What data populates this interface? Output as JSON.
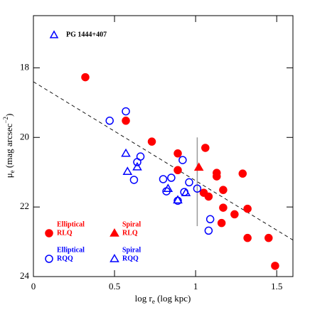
{
  "chart_data": {
    "type": "scatter",
    "xlabel": {
      "text": "log r",
      "sub": "e",
      "rest": " (log kpc)"
    },
    "ylabel": {
      "symbol": "μ",
      "sub": "e",
      "text": " (mag arcsec",
      "sup": "−2",
      "close": ")"
    },
    "xlim": [
      0,
      1.6
    ],
    "ylim": [
      24,
      16.5
    ],
    "xticks": [
      0,
      0.5,
      1,
      1.5
    ],
    "yticks": [
      18,
      20,
      22,
      24
    ],
    "annotation": {
      "text": "PG 1444+407",
      "color": "#0000ff"
    },
    "fit_line": {
      "x": [
        0,
        1.6
      ],
      "y": [
        18.4,
        22.95
      ]
    },
    "error_bar": {
      "x": 1.01,
      "y": [
        20.0,
        22.55
      ],
      "color": "#999999"
    },
    "series": [
      {
        "name": "Elliptical",
        "group": "RLQ",
        "color": "#ff0000",
        "marker": "circle",
        "filled": true,
        "x": [
          0.32,
          0.57,
          0.73,
          0.89,
          0.89,
          1.06,
          1.05,
          1.08,
          1.13,
          1.13,
          1.17,
          1.17,
          1.16,
          1.24,
          1.29,
          1.32,
          1.32,
          1.45,
          1.49
        ],
        "values": [
          18.27,
          19.52,
          20.12,
          20.46,
          20.94,
          20.3,
          21.59,
          21.7,
          21.12,
          21.02,
          21.51,
          22.02,
          22.46,
          22.21,
          21.04,
          22.05,
          22.89,
          22.89,
          23.69
        ]
      },
      {
        "name": "Spiral",
        "group": "RLQ",
        "color": "#ff0000",
        "marker": "triangle",
        "filled": true,
        "x": [
          1.02
        ],
        "values": [
          20.86
        ]
      },
      {
        "name": "Elliptical",
        "group": "RQQ",
        "color": "#0000ff",
        "marker": "circle",
        "filled": false,
        "x": [
          0.57,
          0.47,
          0.66,
          0.64,
          0.62,
          0.8,
          0.85,
          0.82,
          0.92,
          0.96,
          0.93,
          0.89,
          1.01,
          1.09,
          1.08
        ],
        "values": [
          19.25,
          19.52,
          20.55,
          20.71,
          21.22,
          21.2,
          21.16,
          21.55,
          20.65,
          21.29,
          21.57,
          21.82,
          21.47,
          22.35,
          22.68
        ]
      },
      {
        "name": "Spiral",
        "group": "RQQ",
        "color": "#0000ff",
        "marker": "triangle",
        "filled": false,
        "x": [
          0.57,
          0.58,
          0.64,
          0.83,
          0.89,
          0.94
        ],
        "values": [
          20.46,
          20.98,
          20.85,
          21.47,
          21.8,
          21.59
        ]
      }
    ]
  }
}
